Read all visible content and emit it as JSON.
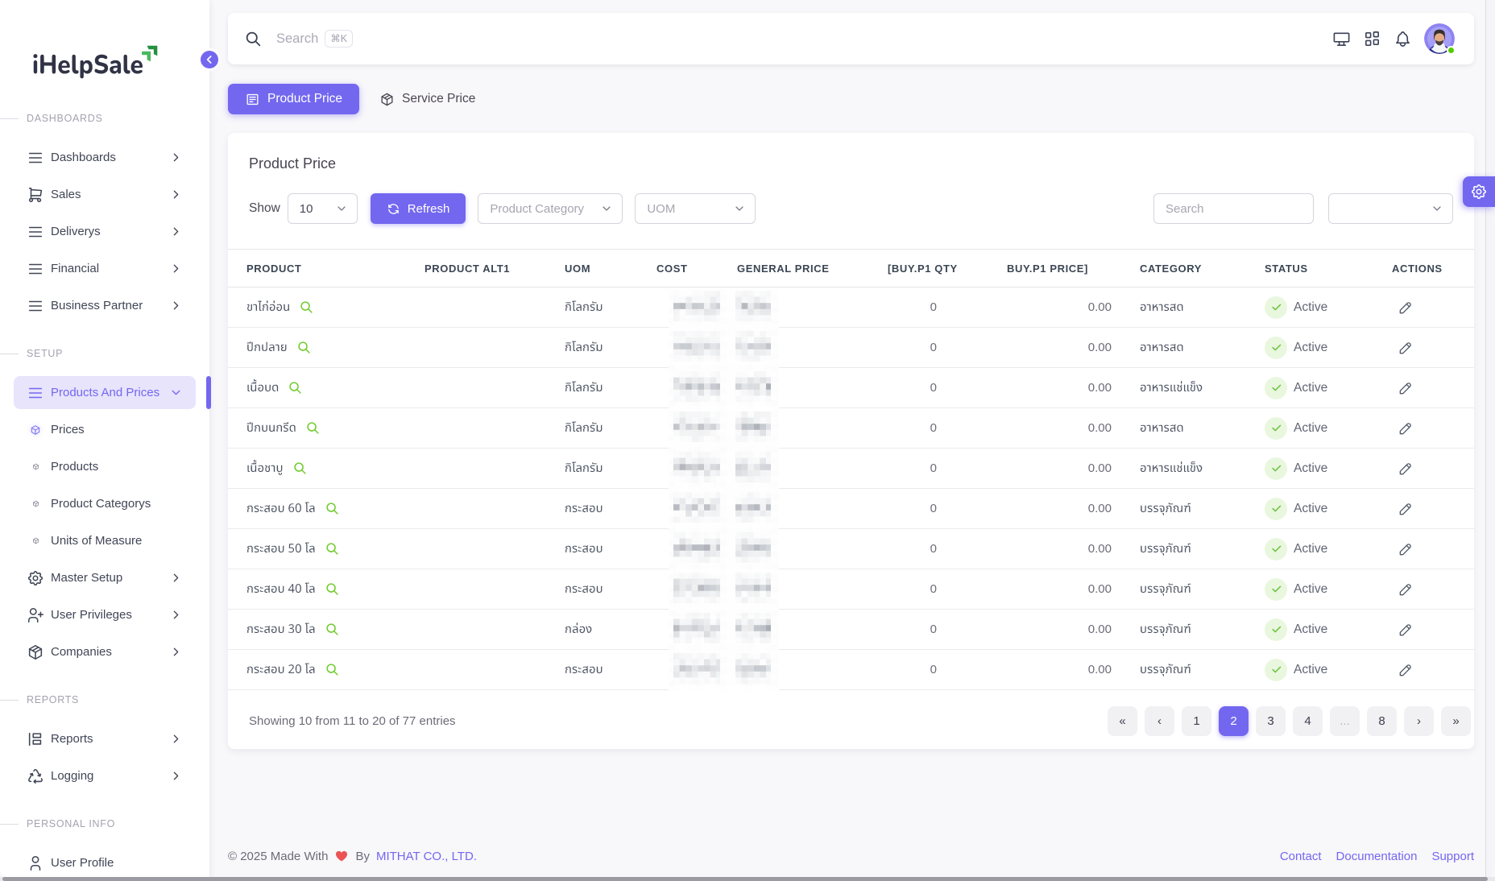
{
  "app": {
    "logo_text": "iHelpSale"
  },
  "topbar": {
    "search_placeholder": "Search",
    "shortcut_badge": "⌘K",
    "icons": [
      "monitor-icon",
      "grid-icon",
      "bell-icon"
    ],
    "avatar_status": "online"
  },
  "sidebar": {
    "sections": [
      {
        "label": "DASHBOARDS",
        "items": [
          {
            "label": "Dashboards"
          },
          {
            "label": "Sales"
          },
          {
            "label": "Deliverys"
          },
          {
            "label": "Financial"
          },
          {
            "label": "Business Partner"
          }
        ]
      },
      {
        "label": "SETUP",
        "items": [
          {
            "label": "Products And Prices",
            "active": true
          },
          {
            "label": "Prices",
            "active_sub": true
          },
          {
            "label": "Products"
          },
          {
            "label": "Product Categorys"
          },
          {
            "label": "Units of Measure"
          },
          {
            "label": "Master Setup"
          },
          {
            "label": "User Privileges"
          },
          {
            "label": "Companies"
          }
        ]
      },
      {
        "label": "REPORTS",
        "items": [
          {
            "label": "Reports"
          },
          {
            "label": "Logging"
          }
        ]
      },
      {
        "label": "PERSONAL INFO",
        "items": [
          {
            "label": "User Profile"
          }
        ]
      }
    ]
  },
  "tabs": [
    {
      "label": "Product Price",
      "active": true
    },
    {
      "label": "Service Price",
      "active": false
    }
  ],
  "card": {
    "title": "Product Price",
    "filters": {
      "show_label": "Show",
      "show_value": "10",
      "refresh_label": "Refresh",
      "category_placeholder": "Product Category",
      "uom_placeholder": "UOM",
      "search_placeholder": "Search",
      "extra_select_value": ""
    },
    "table": {
      "columns": [
        "PRODUCT",
        "PRODUCT ALT1",
        "UOM",
        "COST",
        "GENERAL PRICE",
        "[BUY.P1 QTY",
        "BUY.P1 PRICE]",
        "CATEGORY",
        "STATUS",
        "ACTIONS"
      ],
      "redacted_columns": [
        "COST",
        "GENERAL PRICE"
      ],
      "rows": [
        {
          "product": "ขาไก่อ่อน",
          "uom": "กิโลกรัม",
          "qty": "0",
          "price": "0.00",
          "category": "อาหารสด",
          "status": "Active"
        },
        {
          "product": "ปีกปลาย",
          "uom": "กิโลกรัม",
          "qty": "0",
          "price": "0.00",
          "category": "อาหารสด",
          "status": "Active"
        },
        {
          "product": "เนื้อบด",
          "uom": "กิโลกรัม",
          "qty": "0",
          "price": "0.00",
          "category": "อาหารแช่แข็ง",
          "status": "Active"
        },
        {
          "product": "ปีกบนกรีด",
          "uom": "กิโลกรัม",
          "qty": "0",
          "price": "0.00",
          "category": "อาหารสด",
          "status": "Active"
        },
        {
          "product": "เนื้อชาบู",
          "uom": "กิโลกรัม",
          "qty": "0",
          "price": "0.00",
          "category": "อาหารแช่แข็ง",
          "status": "Active"
        },
        {
          "product": "กระสอบ 60 โล",
          "uom": "กระสอบ",
          "qty": "0",
          "price": "0.00",
          "category": "บรรจุภัณฑ์",
          "status": "Active"
        },
        {
          "product": "กระสอบ 50 โล",
          "uom": "กระสอบ",
          "qty": "0",
          "price": "0.00",
          "category": "บรรจุภัณฑ์",
          "status": "Active"
        },
        {
          "product": "กระสอบ 40 โล",
          "uom": "กระสอบ",
          "qty": "0",
          "price": "0.00",
          "category": "บรรจุภัณฑ์",
          "status": "Active"
        },
        {
          "product": "กระสอบ 30 โล",
          "uom": "กล่อง",
          "qty": "0",
          "price": "0.00",
          "category": "บรรจุภัณฑ์",
          "status": "Active"
        },
        {
          "product": "กระสอบ 20 โล",
          "uom": "กระสอบ",
          "qty": "0",
          "price": "0.00",
          "category": "บรรจุภัณฑ์",
          "status": "Active"
        }
      ]
    },
    "summary": "Showing 10 from 11 to 20 of 77 entries",
    "pagination": {
      "items": [
        "«",
        "‹",
        "1",
        "2",
        "3",
        "4",
        "...",
        "8",
        "›",
        "»"
      ],
      "active": "2"
    }
  },
  "footer": {
    "copyright": "© 2025 Made With",
    "by": "By",
    "company": "MITHAT CO., LTD.",
    "links": [
      "Contact",
      "Documentation",
      "Support"
    ]
  },
  "colors": {
    "primary": "#7367f0",
    "success": "#67c23a",
    "heart": "#ea5455",
    "logo_green_dark": "#23913f",
    "logo_green_light": "#4bb95f"
  }
}
